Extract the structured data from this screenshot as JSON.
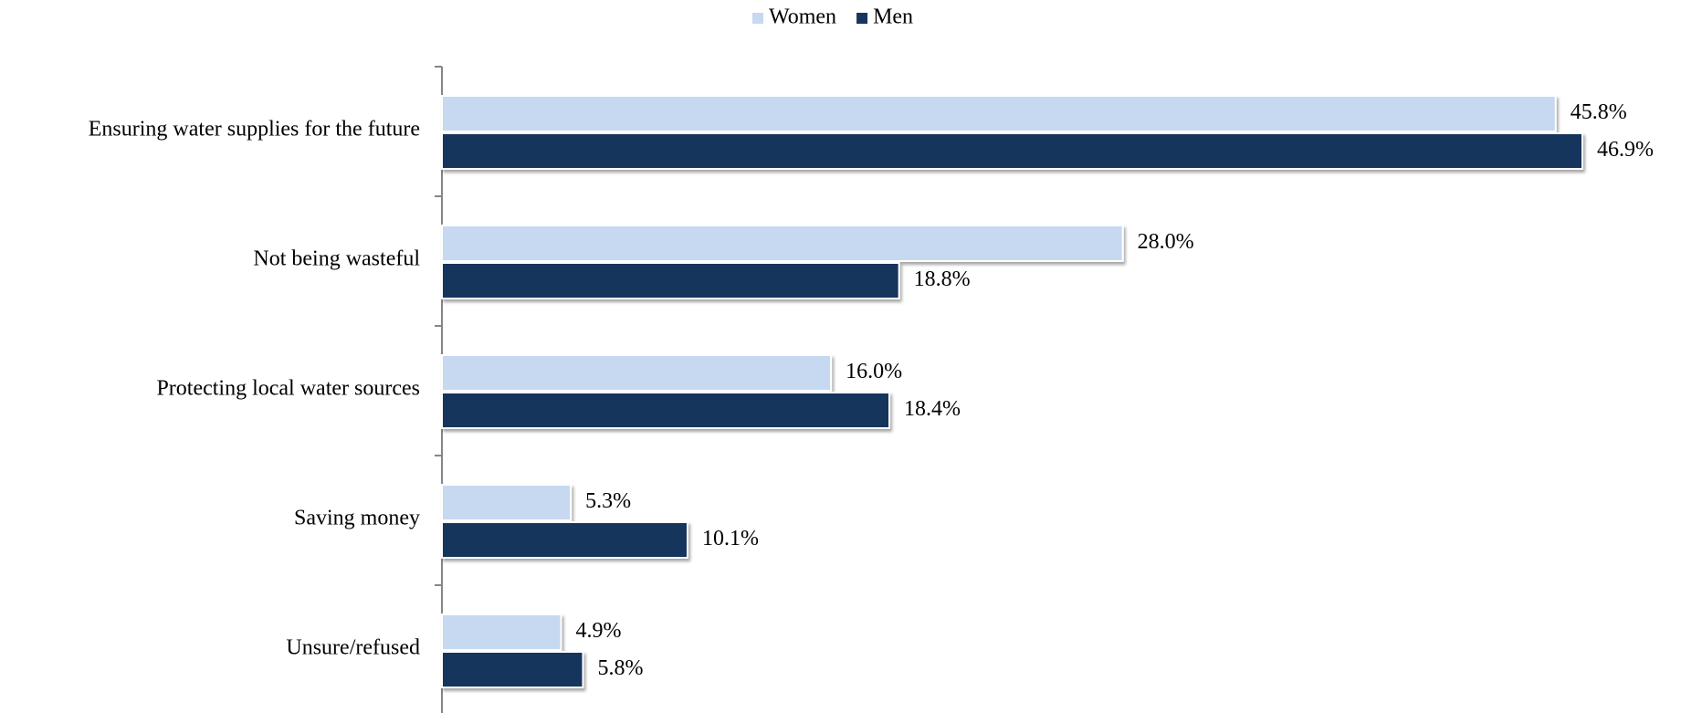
{
  "chart_data": {
    "type": "hbar",
    "categories": [
      "Ensuring water supplies for the future",
      "Not being wasteful",
      "Protecting local water sources",
      "Saving money",
      "Unsure/refused"
    ],
    "series": [
      {
        "name": "Women",
        "color": "#c6d9f1",
        "values": [
          45.8,
          28.0,
          16.0,
          5.3,
          4.9
        ],
        "value_labels": [
          "45.8%",
          "28.0%",
          "16.0%",
          "5.3%",
          "4.9%"
        ]
      },
      {
        "name": "Men",
        "color": "#17365d",
        "values": [
          46.9,
          18.8,
          18.4,
          10.1,
          5.8
        ],
        "value_labels": [
          "46.9%",
          "18.8%",
          "18.4%",
          "10.1%",
          "5.8%"
        ]
      }
    ],
    "legend": "top"
  }
}
